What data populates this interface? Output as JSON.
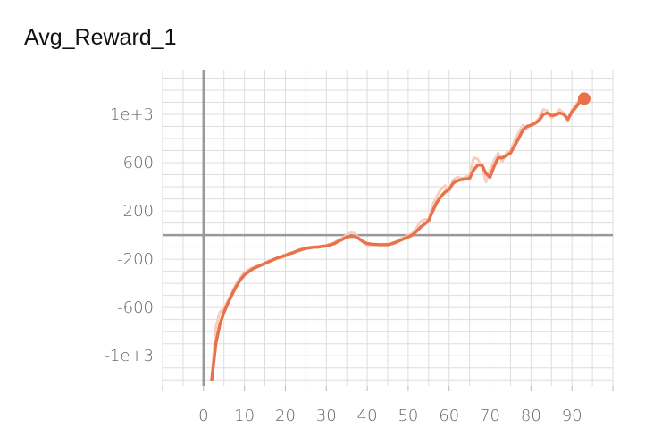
{
  "chart_data": {
    "type": "line",
    "title": "Avg_Reward_1",
    "xlim": [
      -10,
      100
    ],
    "ylim": [
      -1250,
      1370
    ],
    "x_ticks": [
      0,
      10,
      20,
      30,
      40,
      50,
      60,
      70,
      80,
      90
    ],
    "x_tick_labels": [
      "0",
      "10",
      "20",
      "30",
      "40",
      "50",
      "60",
      "70",
      "80",
      "90"
    ],
    "y_ticks": [
      1000,
      600,
      200,
      -200,
      -600,
      -1000
    ],
    "y_tick_labels": [
      "1e+3",
      "600",
      "200",
      "-200",
      "-600",
      "-1e+3"
    ],
    "grid": true,
    "colors": {
      "smoothed": "#e8734a",
      "raw": "#f7cfc0",
      "axis": "#999999",
      "grid": "#dddddd"
    },
    "series": [
      {
        "x": [
          2,
          3,
          4,
          5,
          6,
          7,
          8,
          9,
          10,
          11,
          12,
          13,
          14,
          15,
          16,
          17,
          18,
          19,
          20,
          21,
          22,
          23,
          24,
          25,
          26,
          27,
          28,
          29,
          30,
          31,
          32,
          33,
          34,
          35,
          36,
          37,
          38,
          39,
          40,
          41,
          42,
          43,
          44,
          45,
          46,
          47,
          48,
          49,
          50,
          51,
          52,
          53,
          54,
          55,
          56,
          57,
          58,
          59,
          60,
          61,
          62,
          63,
          64,
          65,
          66,
          67,
          68,
          69,
          70,
          71,
          72,
          73,
          74,
          75,
          76,
          77,
          78,
          79,
          80,
          81,
          82,
          83,
          84,
          85,
          86,
          87,
          88,
          89,
          90,
          91,
          92,
          93
        ],
        "values": [
          -1200,
          -900,
          -740,
          -640,
          -560,
          -490,
          -425,
          -370,
          -330,
          -305,
          -280,
          -265,
          -250,
          -235,
          -220,
          -205,
          -190,
          -180,
          -170,
          -155,
          -145,
          -130,
          -120,
          -110,
          -105,
          -100,
          -100,
          -95,
          -90,
          -80,
          -70,
          -50,
          -35,
          -15,
          -10,
          -10,
          -30,
          -55,
          -70,
          -75,
          -78,
          -80,
          -80,
          -80,
          -72,
          -60,
          -45,
          -30,
          -15,
          0,
          30,
          65,
          90,
          120,
          200,
          270,
          320,
          355,
          380,
          430,
          450,
          460,
          465,
          470,
          540,
          580,
          580,
          510,
          480,
          570,
          640,
          640,
          660,
          680,
          740,
          800,
          870,
          900,
          910,
          925,
          950,
          1000,
          1010,
          990,
          995,
          1010,
          1000,
          960,
          1020,
          1060,
          1110,
          1130
        ],
        "raw_values": [
          -1200,
          -760,
          -640,
          -600,
          -540,
          -470,
          -400,
          -350,
          -310,
          -285,
          -270,
          -255,
          -245,
          -230,
          -215,
          -200,
          -188,
          -175,
          -160,
          -150,
          -140,
          -125,
          -115,
          -105,
          -100,
          -100,
          -95,
          -90,
          -85,
          -75,
          -60,
          -40,
          -25,
          5,
          20,
          15,
          -25,
          -60,
          -85,
          -80,
          -80,
          -80,
          -75,
          -75,
          -65,
          -55,
          -35,
          -20,
          0,
          15,
          60,
          110,
          130,
          130,
          250,
          320,
          380,
          410,
          360,
          460,
          480,
          470,
          480,
          500,
          640,
          630,
          560,
          440,
          540,
          620,
          680,
          610,
          680,
          700,
          780,
          850,
          910,
          880,
          920,
          930,
          970,
          1040,
          1030,
          970,
          1000,
          1040,
          1010,
          940,
          1040,
          1080,
          1130,
          1140
        ]
      }
    ],
    "last_point": {
      "x": 93,
      "y": 1130
    }
  }
}
